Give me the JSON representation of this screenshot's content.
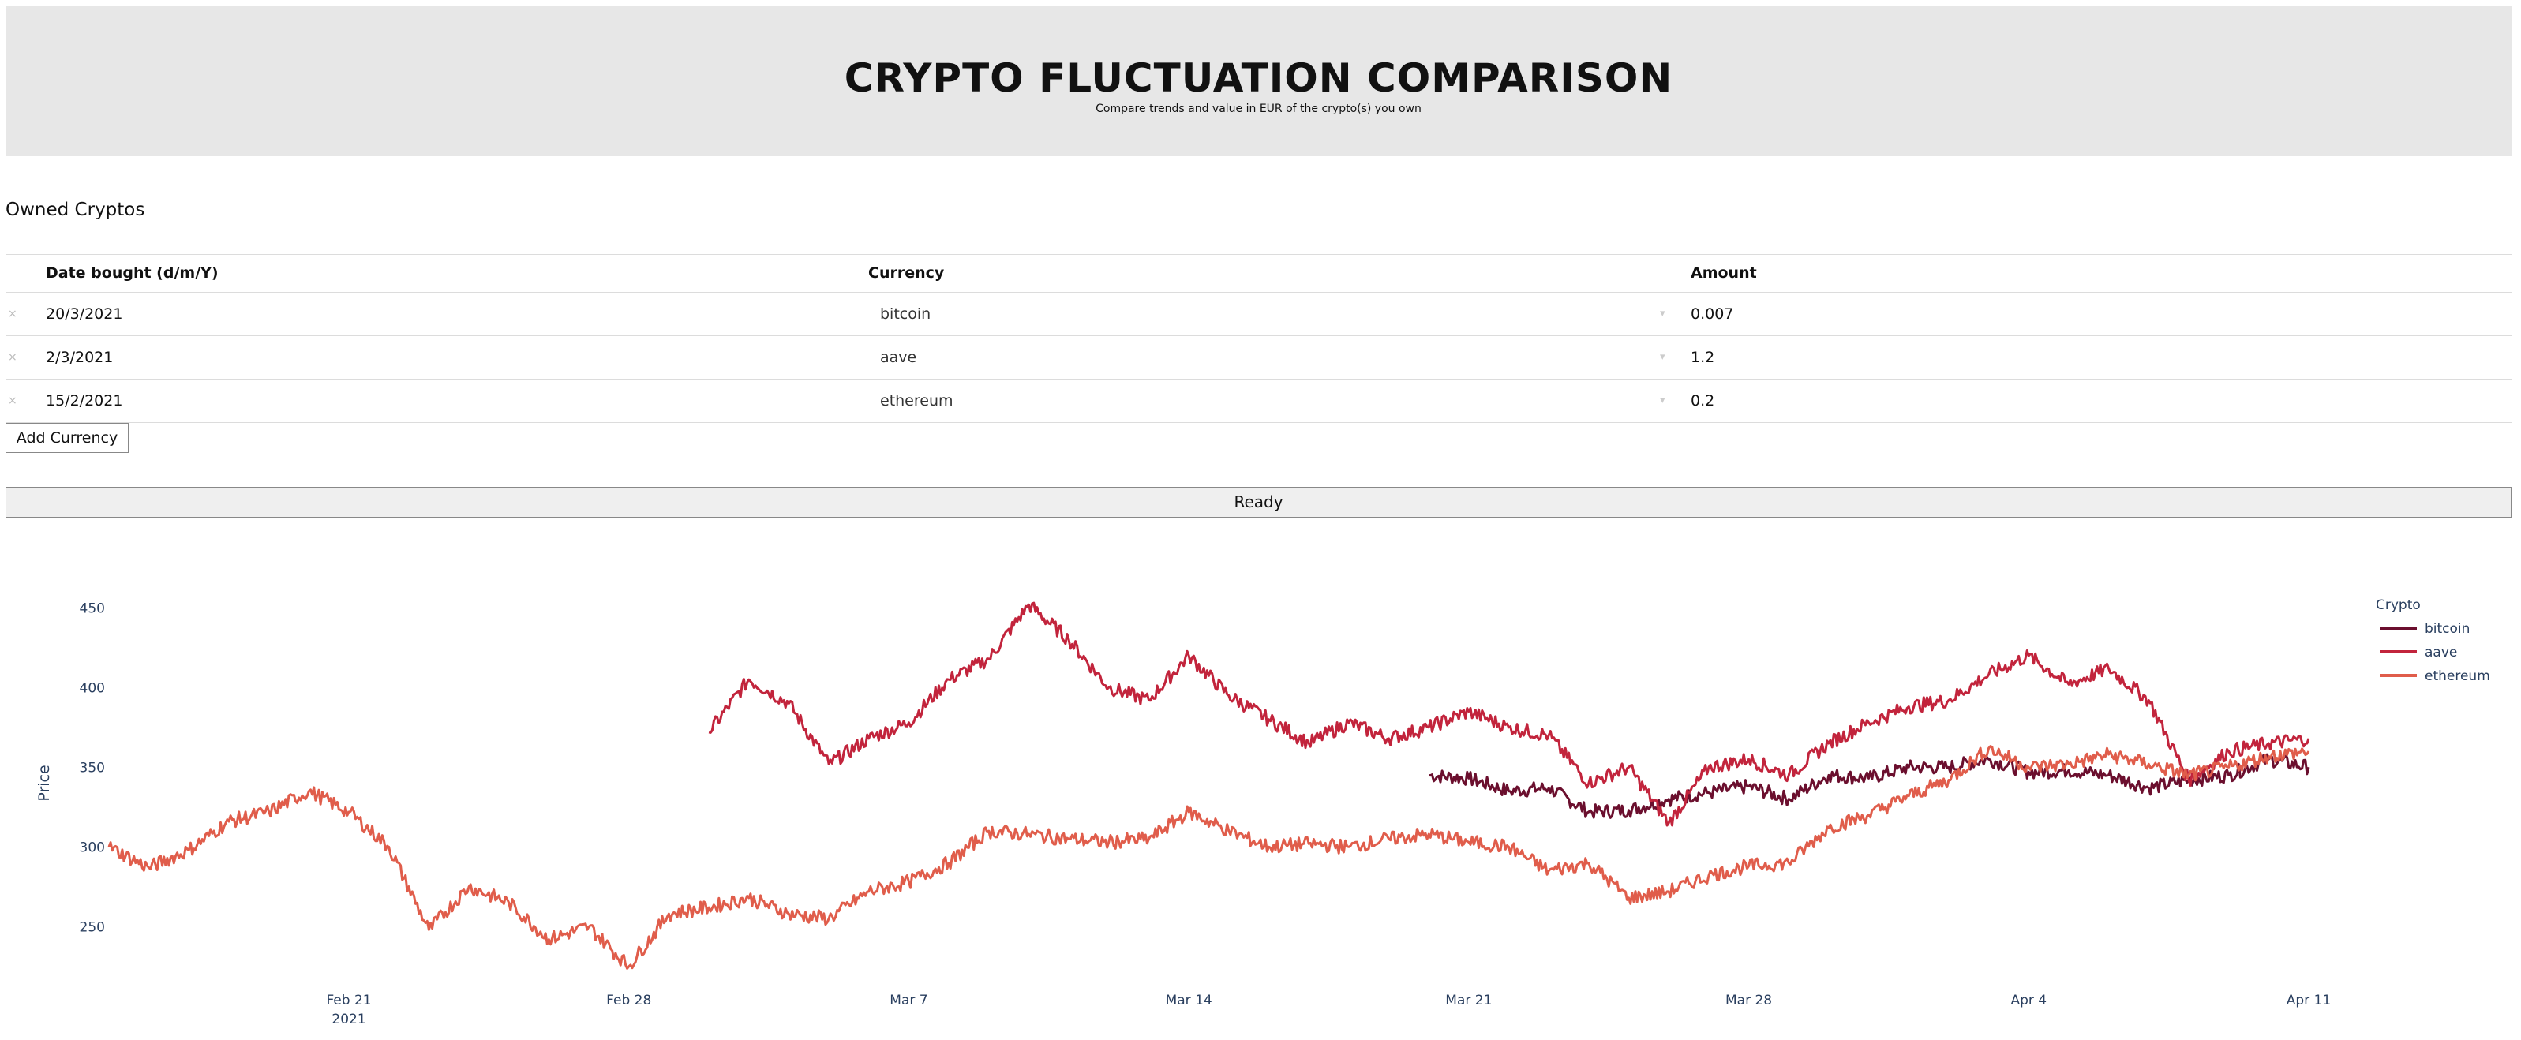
{
  "header": {
    "title": "CRYPTO FLUCTUATION COMPARISON",
    "subtitle": "Compare trends and value in EUR of the crypto(s) you own"
  },
  "owned": {
    "title": "Owned Cryptos",
    "columns": [
      "Date bought (d/m/Y)",
      "Currency",
      "Amount"
    ],
    "rows": [
      {
        "date": "20/3/2021",
        "currency": "bitcoin",
        "amount": "0.007"
      },
      {
        "date": "2/3/2021",
        "currency": "aave",
        "amount": "1.2"
      },
      {
        "date": "15/2/2021",
        "currency": "ethereum",
        "amount": "0.2"
      }
    ],
    "delete_glyph": "×",
    "caret_glyph": "▾",
    "add_label": "Add Currency"
  },
  "status": {
    "label": "Ready"
  },
  "chart_data": {
    "type": "line",
    "title": "",
    "xlabel": "",
    "ylabel": "Price",
    "ylim": [
      215,
      465
    ],
    "yticks": [
      250,
      300,
      350,
      400,
      450
    ],
    "xlim": [
      "2021-02-15",
      "2021-04-11"
    ],
    "xticks": [
      {
        "date": "2021-02-21",
        "label": "Feb 21",
        "sublabel": "2021"
      },
      {
        "date": "2021-02-28",
        "label": "Feb 28",
        "sublabel": ""
      },
      {
        "date": "2021-03-07",
        "label": "Mar 7",
        "sublabel": ""
      },
      {
        "date": "2021-03-14",
        "label": "Mar 14",
        "sublabel": ""
      },
      {
        "date": "2021-03-21",
        "label": "Mar 21",
        "sublabel": ""
      },
      {
        "date": "2021-03-28",
        "label": "Mar 28",
        "sublabel": ""
      },
      {
        "date": "2021-04-04",
        "label": "Apr 4",
        "sublabel": ""
      },
      {
        "date": "2021-04-11",
        "label": "Apr 11",
        "sublabel": ""
      }
    ],
    "grid": false,
    "legend": {
      "title": "Crypto",
      "placement": "top-right"
    },
    "series": [
      {
        "name": "bitcoin",
        "color": "#6b0f2e",
        "points": [
          [
            "2021-03-20",
            345
          ],
          [
            "2021-03-21",
            343
          ],
          [
            "2021-03-22",
            335
          ],
          [
            "2021-03-23",
            337
          ],
          [
            "2021-03-24",
            322
          ],
          [
            "2021-03-25",
            323
          ],
          [
            "2021-03-26",
            330
          ],
          [
            "2021-03-27",
            334
          ],
          [
            "2021-03-28",
            338
          ],
          [
            "2021-03-29",
            330
          ],
          [
            "2021-03-30",
            345
          ],
          [
            "2021-03-31",
            343
          ],
          [
            "2021-04-01",
            350
          ],
          [
            "2021-04-02",
            350
          ],
          [
            "2021-04-03",
            355
          ],
          [
            "2021-04-04",
            347
          ],
          [
            "2021-04-05",
            348
          ],
          [
            "2021-04-06",
            345
          ],
          [
            "2021-04-07",
            337
          ],
          [
            "2021-04-08",
            342
          ],
          [
            "2021-04-09",
            345
          ],
          [
            "2021-04-10",
            355
          ],
          [
            "2021-04-11",
            350
          ]
        ]
      },
      {
        "name": "aave",
        "color": "#c2243c",
        "points": [
          [
            "2021-03-02",
            372
          ],
          [
            "2021-03-03",
            405
          ],
          [
            "2021-03-04",
            390
          ],
          [
            "2021-03-05",
            352
          ],
          [
            "2021-03-06",
            368
          ],
          [
            "2021-03-07",
            378
          ],
          [
            "2021-03-08",
            405
          ],
          [
            "2021-03-09",
            418
          ],
          [
            "2021-03-10",
            452
          ],
          [
            "2021-03-11",
            430
          ],
          [
            "2021-03-12",
            400
          ],
          [
            "2021-03-13",
            392
          ],
          [
            "2021-03-14",
            420
          ],
          [
            "2021-03-15",
            395
          ],
          [
            "2021-03-16",
            380
          ],
          [
            "2021-03-17",
            365
          ],
          [
            "2021-03-18",
            378
          ],
          [
            "2021-03-19",
            368
          ],
          [
            "2021-03-20",
            375
          ],
          [
            "2021-03-21",
            385
          ],
          [
            "2021-03-22",
            375
          ],
          [
            "2021-03-23",
            370
          ],
          [
            "2021-03-24",
            340
          ],
          [
            "2021-03-25",
            350
          ],
          [
            "2021-03-26",
            315
          ],
          [
            "2021-03-27",
            350
          ],
          [
            "2021-03-28",
            355
          ],
          [
            "2021-03-29",
            345
          ],
          [
            "2021-03-30",
            365
          ],
          [
            "2021-03-31",
            378
          ],
          [
            "2021-04-01",
            388
          ],
          [
            "2021-04-02",
            392
          ],
          [
            "2021-04-03",
            408
          ],
          [
            "2021-04-04",
            420
          ],
          [
            "2021-04-05",
            402
          ],
          [
            "2021-04-06",
            412
          ],
          [
            "2021-04-07",
            392
          ],
          [
            "2021-04-08",
            342
          ],
          [
            "2021-04-09",
            360
          ],
          [
            "2021-04-10",
            365
          ],
          [
            "2021-04-11",
            368
          ]
        ]
      },
      {
        "name": "ethereum",
        "color": "#e05d4b",
        "points": [
          [
            "2021-02-15",
            300
          ],
          [
            "2021-02-16",
            287
          ],
          [
            "2021-02-17",
            298
          ],
          [
            "2021-02-18",
            316
          ],
          [
            "2021-02-19",
            322
          ],
          [
            "2021-02-20",
            335
          ],
          [
            "2021-02-21",
            322
          ],
          [
            "2021-02-22",
            300
          ],
          [
            "2021-02-23",
            248
          ],
          [
            "2021-02-24",
            275
          ],
          [
            "2021-02-25",
            265
          ],
          [
            "2021-02-26",
            242
          ],
          [
            "2021-02-27",
            250
          ],
          [
            "2021-02-28",
            225
          ],
          [
            "2021-03-01",
            258
          ],
          [
            "2021-03-02",
            262
          ],
          [
            "2021-03-03",
            268
          ],
          [
            "2021-03-04",
            258
          ],
          [
            "2021-03-05",
            255
          ],
          [
            "2021-03-06",
            272
          ],
          [
            "2021-03-07",
            278
          ],
          [
            "2021-03-08",
            290
          ],
          [
            "2021-03-09",
            310
          ],
          [
            "2021-03-10",
            308
          ],
          [
            "2021-03-11",
            305
          ],
          [
            "2021-03-12",
            303
          ],
          [
            "2021-03-13",
            305
          ],
          [
            "2021-03-14",
            322
          ],
          [
            "2021-03-15",
            310
          ],
          [
            "2021-03-16",
            300
          ],
          [
            "2021-03-17",
            302
          ],
          [
            "2021-03-18",
            300
          ],
          [
            "2021-03-19",
            305
          ],
          [
            "2021-03-20",
            308
          ],
          [
            "2021-03-21",
            303
          ],
          [
            "2021-03-22",
            300
          ],
          [
            "2021-03-23",
            285
          ],
          [
            "2021-03-24",
            290
          ],
          [
            "2021-03-25",
            268
          ],
          [
            "2021-03-26",
            272
          ],
          [
            "2021-03-27",
            282
          ],
          [
            "2021-03-28",
            288
          ],
          [
            "2021-03-29",
            290
          ],
          [
            "2021-03-30",
            312
          ],
          [
            "2021-03-31",
            320
          ],
          [
            "2021-04-01",
            332
          ],
          [
            "2021-04-02",
            342
          ],
          [
            "2021-04-03",
            362
          ],
          [
            "2021-04-04",
            350
          ],
          [
            "2021-04-05",
            352
          ],
          [
            "2021-04-06",
            358
          ],
          [
            "2021-04-07",
            352
          ],
          [
            "2021-04-08",
            345
          ],
          [
            "2021-04-09",
            350
          ],
          [
            "2021-04-10",
            357
          ],
          [
            "2021-04-11",
            360
          ]
        ]
      }
    ]
  }
}
